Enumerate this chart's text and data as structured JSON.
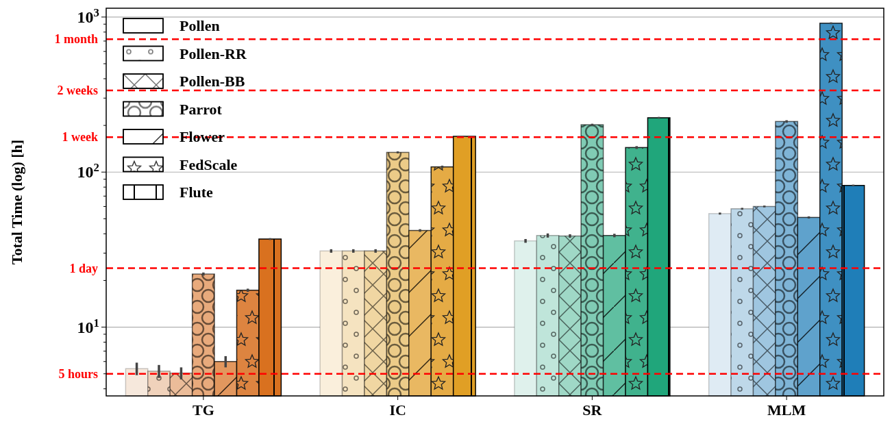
{
  "chart_data": {
    "type": "bar",
    "ylabel": "Total Time (log) [h]",
    "categories": [
      "TG",
      "IC",
      "SR",
      "MLM"
    ],
    "log": true,
    "ylim": [
      3.6,
      1140
    ],
    "yticks": [
      {
        "value": 4,
        "label": null
      },
      {
        "value": 5,
        "label": null
      },
      {
        "value": 6,
        "label": null
      },
      {
        "value": 7,
        "label": null
      },
      {
        "value": 8,
        "label": null
      },
      {
        "value": 9,
        "label": null
      },
      {
        "value": 10,
        "label": "10$^{1}$"
      },
      {
        "value": 20,
        "label": null
      },
      {
        "value": 30,
        "label": null
      },
      {
        "value": 40,
        "label": null
      },
      {
        "value": 50,
        "label": null
      },
      {
        "value": 60,
        "label": null
      },
      {
        "value": 70,
        "label": null
      },
      {
        "value": 80,
        "label": null
      },
      {
        "value": 90,
        "label": null
      },
      {
        "value": 100,
        "label": "10$^{2}$"
      },
      {
        "value": 200,
        "label": null
      },
      {
        "value": 300,
        "label": null
      },
      {
        "value": 400,
        "label": null
      },
      {
        "value": 500,
        "label": null
      },
      {
        "value": 600,
        "label": null
      },
      {
        "value": 700,
        "label": null
      },
      {
        "value": 800,
        "label": null
      },
      {
        "value": 900,
        "label": null
      },
      {
        "value": 1000,
        "label": "10$^{3}$"
      }
    ],
    "grid": "y",
    "legend": "top left",
    "series": [
      {
        "name": "Pollen",
        "colors": [
          "#f6e8dc",
          "#faefdc",
          "#dff1ec",
          "#dfebf4"
        ],
        "values": [
          5.4,
          31,
          36,
          54
        ],
        "errors": [
          0.5,
          0.8,
          1,
          0.8
        ]
      },
      {
        "name": "Pollen-RR",
        "colors": [
          "#f0d2bb",
          "#f5e3c0",
          "#bfe5da",
          "#bed8e9"
        ],
        "values": [
          5.2,
          31,
          39,
          58
        ],
        "errors": [
          0.5,
          0.8,
          1.2,
          0.8
        ]
      },
      {
        "name": "Pollen-BB",
        "colors": [
          "#ebbc99",
          "#f0d6a2",
          "#9fd8c6",
          "#9fc6e0"
        ],
        "values": [
          5.05,
          31,
          38.7,
          60
        ],
        "errors": [
          0.45,
          0.8,
          1,
          0.8
        ]
      },
      {
        "name": "Parrot",
        "colors": [
          "#e8aa7c",
          "#eccb88",
          "#80cbb4",
          "#7fb4d6"
        ],
        "values": [
          22,
          134,
          202,
          212
        ],
        "errors": [
          0.5,
          2,
          3,
          4
        ]
      },
      {
        "name": "Flower",
        "colors": [
          "#e2975e",
          "#e9b862",
          "#60bfa1",
          "#5fa2cc"
        ],
        "values": [
          6,
          42,
          39,
          51
        ],
        "errors": [
          0.5,
          0.8,
          1,
          0.8
        ]
      },
      {
        "name": "FedScale",
        "colors": [
          "#dd8440",
          "#e5ab45",
          "#40b28d",
          "#3f90c2"
        ],
        "values": [
          17.3,
          108,
          144,
          912
        ],
        "errors": [
          0.4,
          2,
          3,
          12
        ]
      },
      {
        "name": "Flute",
        "colors": [
          "#d9711f",
          "#e09f25",
          "#20a67b",
          "#1f7eb8"
        ],
        "values": [
          37,
          170,
          224,
          82
        ],
        "errors": [
          0.5,
          1.5,
          3,
          1
        ]
      }
    ],
    "ref_lines": [
      {
        "axis": "y",
        "value": 720,
        "label": "1 month",
        "color": "#ff0000",
        "line_style": "dashed"
      },
      {
        "axis": "y",
        "value": 336,
        "label": "2 weeks",
        "color": "#ff0000",
        "line_style": "dashed"
      },
      {
        "axis": "y",
        "value": 168,
        "label": "1 week",
        "color": "#ff0000",
        "line_style": "dashed"
      },
      {
        "axis": "y",
        "value": 24,
        "label": "1 day",
        "color": "#ff0000",
        "line_style": "dashed"
      },
      {
        "axis": "y",
        "value": 5,
        "label": "5 hours",
        "color": "#ff0000",
        "line_style": "dashed"
      }
    ]
  }
}
